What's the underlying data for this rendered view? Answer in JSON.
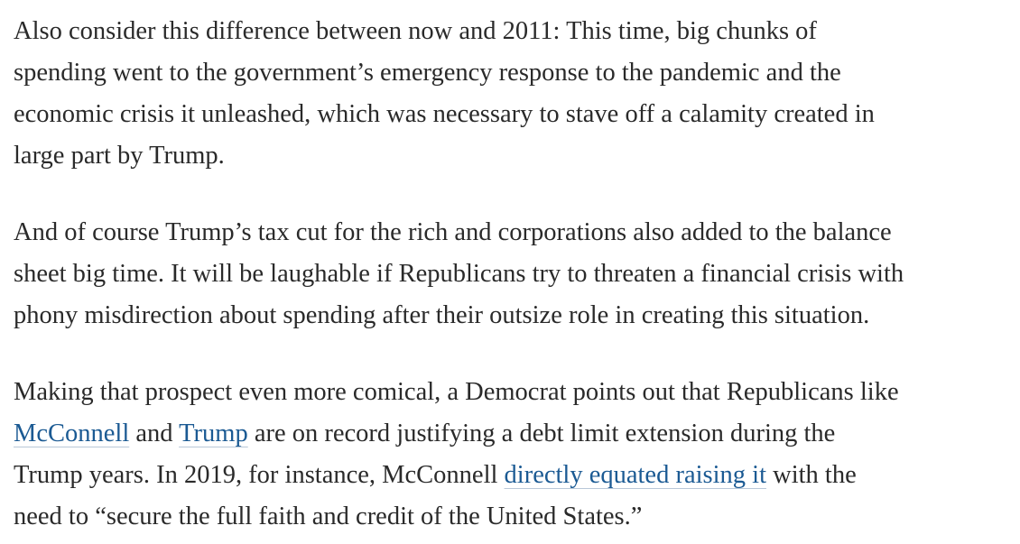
{
  "paragraphs": [
    {
      "lines": [
        [
          "Also consider this difference between now and 2011: This time, big chunks of"
        ],
        [
          "spending went to the government’s emergency response to the pandemic and the"
        ],
        [
          "economic crisis it unleashed, which was necessary to stave off a calamity created in"
        ],
        [
          "large part by Trump."
        ]
      ]
    },
    {
      "lines": [
        [
          "And of course Trump’s tax cut for the rich and corporations also added to the balance"
        ],
        [
          "sheet big time. It will be laughable if Republicans try to threaten a financial crisis with"
        ],
        [
          "phony misdirection about spending after their outsize role in creating this situation."
        ]
      ]
    },
    {
      "lines": [
        [
          "Making that prospect even more comical, a Democrat points out that Republicans like"
        ],
        [
          {
            "link": "McConnell"
          },
          " and ",
          {
            "link": "Trump"
          },
          " are on record justifying a debt limit extension during the"
        ],
        [
          "Trump years. In 2019, for instance, McConnell ",
          {
            "link": "directly equated raising it"
          },
          " with the"
        ],
        [
          "need to “secure the full faith and credit of the United States.”"
        ]
      ]
    }
  ]
}
